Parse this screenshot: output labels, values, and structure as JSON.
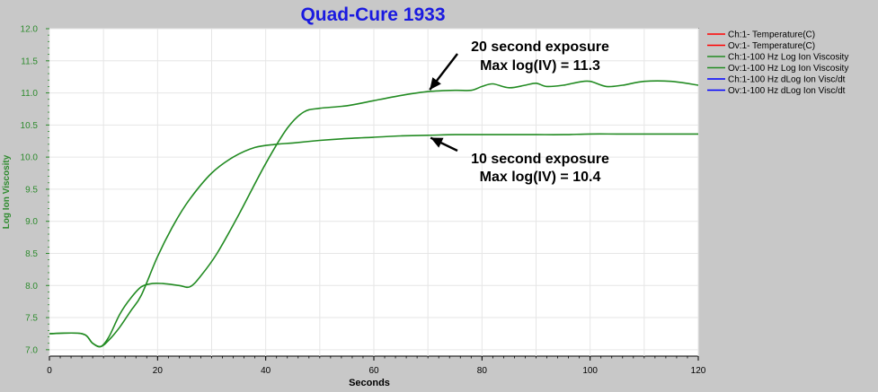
{
  "chart_data": {
    "type": "line",
    "title": "Quad-Cure 1933",
    "xlabel": "Seconds",
    "ylabel": "Log Ion Viscosity",
    "xlim": [
      0,
      120
    ],
    "ylim": [
      6.9,
      12.0
    ],
    "x_ticks": [
      "0",
      "20",
      "40",
      "60",
      "80",
      "100",
      "120"
    ],
    "y_ticks": [
      "7.0",
      "7.5",
      "8.0",
      "8.5",
      "9.0",
      "9.5",
      "10.0",
      "10.5",
      "11.0",
      "11.5",
      "12.0"
    ],
    "grid": true,
    "legend_position": "right",
    "legend": [
      {
        "label": "Ch:1- Temperature(C)",
        "color": "#ff0000"
      },
      {
        "label": "Ov:1- Temperature(C)",
        "color": "#ff0000"
      },
      {
        "label": "Ch:1-100 Hz Log Ion Viscosity",
        "color": "#228b22"
      },
      {
        "label": "Ov:1-100 Hz Log Ion Viscosity",
        "color": "#228b22"
      },
      {
        "label": "Ch:1-100 Hz dLog Ion Visc/dt",
        "color": "#0000ff"
      },
      {
        "label": "Ov:1-100 Hz dLog Ion Visc/dt",
        "color": "#0000ff"
      }
    ],
    "series": [
      {
        "color": "#228b22",
        "x": [
          0,
          6,
          8,
          9.5,
          11,
          13,
          15,
          17,
          20,
          23,
          26,
          30,
          34,
          38,
          42,
          45,
          50,
          55,
          60,
          65,
          70,
          75,
          80,
          85,
          90,
          95,
          100,
          105,
          110,
          115,
          120
        ],
        "y": [
          7.25,
          7.25,
          7.1,
          7.05,
          7.15,
          7.35,
          7.6,
          7.85,
          8.45,
          8.95,
          9.35,
          9.75,
          10.0,
          10.15,
          10.2,
          10.22,
          10.26,
          10.29,
          10.31,
          10.33,
          10.34,
          10.35,
          10.35,
          10.35,
          10.35,
          10.35,
          10.36,
          10.36,
          10.36,
          10.36,
          10.36
        ]
      },
      {
        "color": "#228b22",
        "x": [
          0,
          6,
          8,
          9.5,
          11,
          13,
          15,
          17,
          19,
          21,
          24,
          26,
          28,
          31,
          35,
          40,
          44,
          47,
          50,
          55,
          60,
          65,
          70,
          75,
          78,
          80,
          82,
          85,
          88,
          90,
          92,
          95,
          98,
          100,
          103,
          106,
          110,
          115,
          120
        ],
        "y": [
          7.25,
          7.25,
          7.1,
          7.05,
          7.2,
          7.55,
          7.8,
          7.98,
          8.03,
          8.03,
          8.0,
          7.98,
          8.15,
          8.5,
          9.1,
          9.9,
          10.45,
          10.7,
          10.76,
          10.8,
          10.88,
          10.96,
          11.02,
          11.04,
          11.04,
          11.1,
          11.14,
          11.08,
          11.12,
          11.15,
          11.1,
          11.12,
          11.17,
          11.18,
          11.1,
          11.12,
          11.18,
          11.18,
          11.12
        ]
      }
    ],
    "annotations": [
      {
        "line1": "20 second exposure",
        "line2": "Max log(IV) = 11.3",
        "x": 71,
        "y": 11.02
      },
      {
        "line1": "10 second exposure",
        "line2": "Max log(IV) = 10.4",
        "x": 71,
        "y": 10.33
      }
    ]
  }
}
